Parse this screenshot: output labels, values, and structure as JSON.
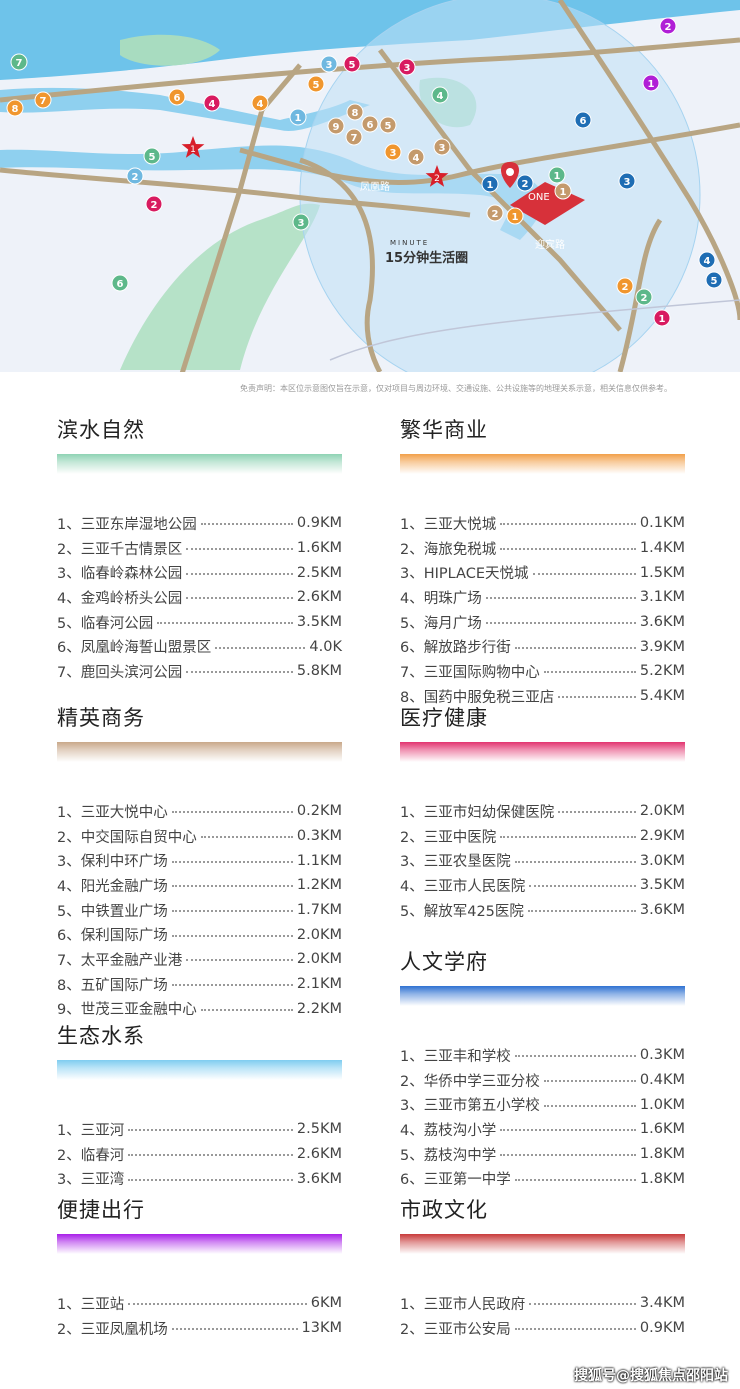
{
  "map": {
    "circle_label": "15分钟生活圈",
    "circle_label_en": "MINUTE",
    "roads": [
      "凤凰路",
      "迎宾路"
    ],
    "project_logo": "ONE",
    "stars": [
      "1",
      "2"
    ],
    "marker_colors": {
      "orange": "#f0962e",
      "magenta": "#d81b60",
      "green": "#5db88a",
      "blue": "#1e6db4",
      "lightblue": "#6fb8e0",
      "tan": "#c49a6c",
      "purple": "#b01fd6"
    },
    "markers": [
      {
        "n": "2",
        "c": "purple"
      },
      {
        "n": "1",
        "c": "purple"
      },
      {
        "n": "7",
        "c": "green"
      },
      {
        "n": "8",
        "c": "orange"
      },
      {
        "n": "7",
        "c": "orange"
      },
      {
        "n": "6",
        "c": "orange"
      },
      {
        "n": "4",
        "c": "magenta"
      },
      {
        "n": "4",
        "c": "orange"
      },
      {
        "n": "3",
        "c": "lightblue"
      },
      {
        "n": "5",
        "c": "magenta"
      },
      {
        "n": "3",
        "c": "magenta"
      },
      {
        "n": "5",
        "c": "orange"
      },
      {
        "n": "4",
        "c": "green"
      },
      {
        "n": "1",
        "c": "lightblue"
      },
      {
        "n": "9",
        "c": "tan"
      },
      {
        "n": "8",
        "c": "tan"
      },
      {
        "n": "7",
        "c": "tan"
      },
      {
        "n": "6",
        "c": "tan"
      },
      {
        "n": "5",
        "c": "tan"
      },
      {
        "n": "3",
        "c": "orange"
      },
      {
        "n": "4",
        "c": "tan"
      },
      {
        "n": "3",
        "c": "tan"
      },
      {
        "n": "5",
        "c": "green"
      },
      {
        "n": "2",
        "c": "lightblue"
      },
      {
        "n": "2",
        "c": "magenta"
      },
      {
        "n": "3",
        "c": "green"
      },
      {
        "n": "6",
        "c": "green"
      },
      {
        "n": "6",
        "c": "blue"
      },
      {
        "n": "3",
        "c": "blue"
      },
      {
        "n": "1",
        "c": "blue"
      },
      {
        "n": "2",
        "c": "blue"
      },
      {
        "n": "1",
        "c": "green"
      },
      {
        "n": "1",
        "c": "tan"
      },
      {
        "n": "2",
        "c": "tan"
      },
      {
        "n": "1",
        "c": "orange"
      },
      {
        "n": "4",
        "c": "blue"
      },
      {
        "n": "5",
        "c": "blue"
      },
      {
        "n": "2",
        "c": "orange"
      },
      {
        "n": "2",
        "c": "green"
      },
      {
        "n": "1",
        "c": "magenta"
      }
    ]
  },
  "disclaimer": "免责声明：本区位示意图仅旨在示意，仅对项目与周边环境、交通设施、公共设施等的地理关系示意，相关信息仅供参考。",
  "sections": [
    {
      "title": "滨水自然",
      "color": "#8fd3b4",
      "items": [
        {
          "name": "1、三亚东岸湿地公园",
          "dist": "0.9KM"
        },
        {
          "name": "2、三亚千古情景区",
          "dist": "1.6KM"
        },
        {
          "name": "3、临春岭森林公园",
          "dist": "2.5KM"
        },
        {
          "name": "4、金鸡岭桥头公园",
          "dist": "2.6KM"
        },
        {
          "name": "5、临春河公园",
          "dist": "3.5KM"
        },
        {
          "name": "6、凤凰岭海誓山盟景区",
          "dist": "4.0K"
        },
        {
          "name": "7、鹿回头滨河公园",
          "dist": "5.8KM"
        }
      ]
    },
    {
      "title": "繁华商业",
      "color": "#f2a04a",
      "items": [
        {
          "name": "1、三亚大悦城",
          "dist": "0.1KM"
        },
        {
          "name": "2、海旅免税城",
          "dist": "1.4KM"
        },
        {
          "name": "3、HIPLACE天悦城",
          "dist": "1.5KM"
        },
        {
          "name": "4、明珠广场",
          "dist": "3.1KM"
        },
        {
          "name": "5、海月广场",
          "dist": "3.6KM"
        },
        {
          "name": "6、解放路步行街",
          "dist": "3.9KM"
        },
        {
          "name": "7、三亚国际购物中心",
          "dist": "5.2KM"
        },
        {
          "name": "8、国药中服免税三亚店",
          "dist": "5.4KM"
        }
      ]
    },
    {
      "title": "精英商务",
      "color": "#c9a88a",
      "items": [
        {
          "name": "1、三亚大悦中心",
          "dist": "0.2KM"
        },
        {
          "name": "2、中交国际自贸中心",
          "dist": "0.3KM"
        },
        {
          "name": "3、保利中环广场",
          "dist": "1.1KM"
        },
        {
          "name": "4、阳光金融广场",
          "dist": "1.2KM"
        },
        {
          "name": "5、中铁置业广场",
          "dist": "1.7KM"
        },
        {
          "name": "6、保利国际广场",
          "dist": "2.0KM"
        },
        {
          "name": "7、太平金融产业港",
          "dist": "2.0KM"
        },
        {
          "name": "8、五矿国际广场",
          "dist": "2.1KM"
        },
        {
          "name": "9、世茂三亚金融中心",
          "dist": "2.2KM"
        }
      ]
    },
    {
      "title": "医疗健康",
      "color": "#e2336f",
      "items": [
        {
          "name": "1、三亚市妇幼保健医院",
          "dist": "2.0KM"
        },
        {
          "name": "2、三亚中医院",
          "dist": "2.9KM"
        },
        {
          "name": "3、三亚农垦医院",
          "dist": "3.0KM"
        },
        {
          "name": "4、三亚市人民医院",
          "dist": "3.5KM"
        },
        {
          "name": "5、解放军425医院",
          "dist": "3.6KM"
        }
      ]
    },
    {
      "title": "生态水系",
      "color": "#7fcdf0",
      "items": [
        {
          "name": "1、三亚河",
          "dist": "2.5KM"
        },
        {
          "name": "2、临春河",
          "dist": "2.6KM"
        },
        {
          "name": "3、三亚湾",
          "dist": "3.6KM"
        }
      ]
    },
    {
      "title": "人文学府",
      "color": "#2f72d2",
      "items": [
        {
          "name": "1、三亚丰和学校",
          "dist": "0.3KM"
        },
        {
          "name": "2、华侨中学三亚分校",
          "dist": "0.4KM"
        },
        {
          "name": "3、三亚市第五小学校",
          "dist": "1.0KM"
        },
        {
          "name": "4、荔枝沟小学",
          "dist": "1.6KM"
        },
        {
          "name": "5、荔枝沟中学",
          "dist": "1.8KM"
        },
        {
          "name": "6、三亚第一中学",
          "dist": "1.8KM"
        }
      ]
    },
    {
      "title": "便捷出行",
      "color": "#a81ee8",
      "items": [
        {
          "name": "1、三亚站",
          "dist": "6KM"
        },
        {
          "name": "2、三亚凤凰机场",
          "dist": "13KM"
        }
      ]
    },
    {
      "title": "市政文化",
      "color": "#c83a3a",
      "items": [
        {
          "name": "1、三亚市人民政府",
          "dist": "3.4KM"
        },
        {
          "name": "2、三亚市公安局",
          "dist": "0.9KM"
        }
      ]
    }
  ],
  "watermark": "搜狐号@搜狐焦点邵阳站"
}
